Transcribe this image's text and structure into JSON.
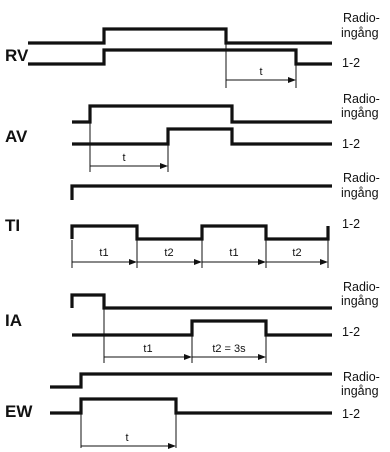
{
  "labels": {
    "radio_line1": "Radio-",
    "radio_line2": "ingång",
    "output": "1-2"
  },
  "modes": [
    {
      "name": "RV",
      "durations": [
        "t"
      ]
    },
    {
      "name": "AV",
      "durations": [
        "t"
      ]
    },
    {
      "name": "TI",
      "durations": [
        "t1",
        "t2",
        "t1",
        "t2"
      ]
    },
    {
      "name": "IA",
      "durations": [
        "t1",
        "t2 = 3s"
      ]
    },
    {
      "name": "EW",
      "durations": [
        "t"
      ]
    }
  ]
}
